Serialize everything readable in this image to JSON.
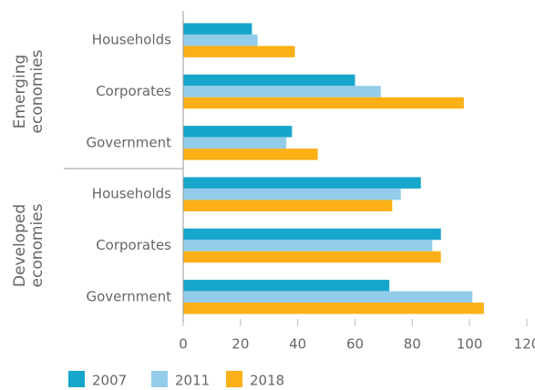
{
  "chart_data": {
    "type": "bar",
    "orientation": "horizontal",
    "categories": [
      "Households",
      "Corporates",
      "Government",
      "Households",
      "Corporates",
      "Government"
    ],
    "group_labels": [
      [
        "Emerging",
        "economies"
      ],
      [
        "Developed",
        "economies"
      ]
    ],
    "series": [
      {
        "name": "2007",
        "color": "#17a6cb",
        "values": [
          24,
          60,
          38,
          83,
          90,
          72
        ]
      },
      {
        "name": "2011",
        "color": "#93cde9",
        "values": [
          26,
          69,
          36,
          76,
          87,
          101
        ]
      },
      {
        "name": "2018",
        "color": "#fbb017",
        "values": [
          39,
          98,
          47,
          73,
          90,
          105
        ]
      }
    ],
    "xlim": [
      0,
      120
    ],
    "xticks": [
      0,
      20,
      40,
      60,
      80,
      100,
      120
    ],
    "grid": false
  }
}
